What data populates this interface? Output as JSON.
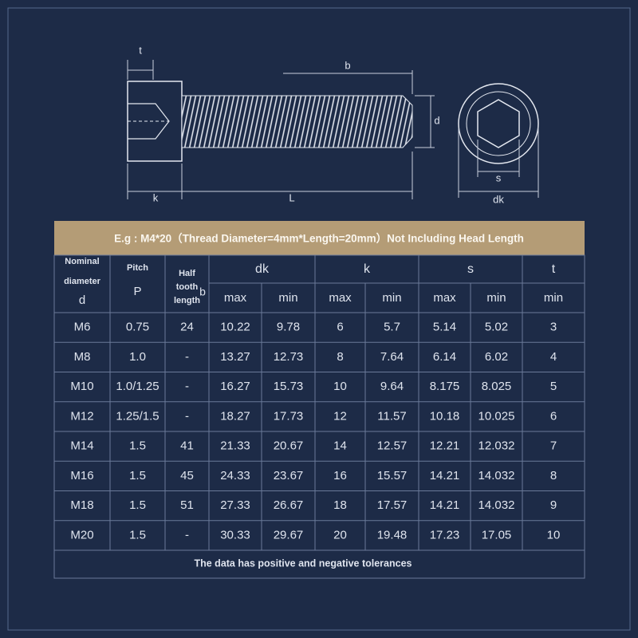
{
  "diagram": {
    "labels": [
      "t",
      "b",
      "d",
      "k",
      "L",
      "s",
      "dk"
    ]
  },
  "banner": "E.g : M4*20（Thread Diameter=4mm*Length=20mm）Not Including Head Length",
  "table": {
    "header": {
      "nominal": {
        "lines": [
          "Nominal",
          "diameter"
        ],
        "symbol": "d"
      },
      "pitch": {
        "lines": [
          "Pitch"
        ],
        "symbol": "P"
      },
      "half": {
        "lines": [
          "Half",
          "tooth",
          "length"
        ],
        "symbol": "b"
      },
      "groups": [
        {
          "symbol": "dk",
          "subs": [
            "max",
            "min"
          ]
        },
        {
          "symbol": "k",
          "subs": [
            "max",
            "min"
          ]
        },
        {
          "symbol": "s",
          "subs": [
            "max",
            "min"
          ]
        },
        {
          "symbol": "t",
          "subs": [
            "min"
          ]
        }
      ]
    },
    "rows": [
      [
        "M6",
        "0.75",
        "24",
        "10.22",
        "9.78",
        "6",
        "5.7",
        "5.14",
        "5.02",
        "3"
      ],
      [
        "M8",
        "1.0",
        "-",
        "13.27",
        "12.73",
        "8",
        "7.64",
        "6.14",
        "6.02",
        "4"
      ],
      [
        "M10",
        "1.0/1.25",
        "-",
        "16.27",
        "15.73",
        "10",
        "9.64",
        "8.175",
        "8.025",
        "5"
      ],
      [
        "M12",
        "1.25/1.5",
        "-",
        "18.27",
        "17.73",
        "12",
        "11.57",
        "10.18",
        "10.025",
        "6"
      ],
      [
        "M14",
        "1.5",
        "41",
        "21.33",
        "20.67",
        "14",
        "12.57",
        "12.21",
        "12.032",
        "7"
      ],
      [
        "M16",
        "1.5",
        "45",
        "24.33",
        "23.67",
        "16",
        "15.57",
        "14.21",
        "14.032",
        "8"
      ],
      [
        "M18",
        "1.5",
        "51",
        "27.33",
        "26.67",
        "18",
        "17.57",
        "14.21",
        "14.032",
        "9"
      ],
      [
        "M20",
        "1.5",
        "-",
        "30.33",
        "29.67",
        "20",
        "19.48",
        "17.23",
        "17.05",
        "10"
      ]
    ]
  },
  "footer": "The data has positive and negative tolerances"
}
